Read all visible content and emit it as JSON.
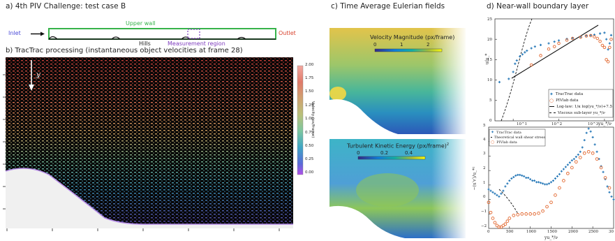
{
  "panel_a": {
    "title": "a) 4th PIV Challenge: test case B",
    "upper_wall": "Upper wall",
    "inlet": "Inlet",
    "outlet": "Outlet",
    "hills": "Hills",
    "measurement_region": "Measurement region"
  },
  "panel_b": {
    "title": "b) TracTrac processing (instantaneous object velocities at frame 28)",
    "y_marker": "y",
    "colorbar_label": "Velocity (px/frame)",
    "colorbar_ticks": [
      "2.00",
      "1.75",
      "1.50",
      "1.25",
      "1.00",
      "0.75",
      "0.50",
      "0.25",
      "0.00"
    ]
  },
  "panel_c": {
    "title": "c) Time Average Eulerian fields",
    "top_label": "Velocity Magnitude (px/frame)",
    "top_ticks": [
      "0",
      "1",
      "2"
    ],
    "bottom_label": "Turbulent Kinetic Energy (px/frame)",
    "bottom_label_sup": "2",
    "bottom_ticks": [
      "0",
      "0.2",
      "0.4"
    ]
  },
  "panel_d": {
    "title": "d) Near-wall boundary layer",
    "chart_data": [
      {
        "type": "scatter",
        "xscale": "log",
        "xlabel": "yu_*/ν",
        "ylabel": "u/u_*",
        "ylim": [
          0,
          25
        ],
        "yticks": [
          "0",
          "5",
          "10",
          "15",
          "20",
          "25"
        ],
        "xticks": [
          "10^1",
          "10^2",
          "10^3"
        ],
        "legend": [
          "TracTrac data",
          "PIVlab data",
          "Log-law: 1/κ log(yu_*/ν)+7.5",
          "Viscous sub-layer yu_*/ν"
        ],
        "series": [
          {
            "name": "TracTrac data",
            "color": "#2b7bb9",
            "x": [
              5,
              8,
              10,
              11,
              12,
              14,
              16,
              18,
              20,
              25,
              30,
              40,
              60,
              80,
              100,
              150,
              200,
              300,
              400,
              500,
              600,
              800,
              1000,
              1100,
              1200,
              1300,
              1400
            ],
            "y": [
              9.5,
              10.3,
              12,
              14,
              14.8,
              15.8,
              16.3,
              16.8,
              17.2,
              17.8,
              18.2,
              18.6,
              19,
              19.4,
              19.7,
              20.1,
              20.3,
              20.6,
              20.9,
              21,
              21.1,
              21.4,
              21.6,
              20,
              17.5,
              19,
              21
            ]
          },
          {
            "name": "PIVlab data",
            "color": "#e2662d",
            "x": [
              25,
              40,
              60,
              80,
              100,
              150,
              200,
              300,
              400,
              500,
              600,
              700,
              800,
              900,
              1000,
              1100,
              1200,
              1300,
              1400
            ],
            "y": [
              13.7,
              16,
              17.6,
              18.2,
              19,
              19.8,
              20.2,
              20.5,
              20.8,
              20.9,
              20.6,
              20.2,
              19.5,
              18.5,
              18,
              15,
              14.5,
              18,
              20
            ]
          }
        ]
      },
      {
        "type": "scatter",
        "xlabel": "yu_*/ν",
        "ylabel": "−⟨u′v′⟩/u_*²",
        "xlim": [
          0,
          3000
        ],
        "ylim": [
          -2,
          5
        ],
        "xticks": [
          "0",
          "500",
          "1000",
          "1500",
          "2000",
          "2500",
          "30"
        ],
        "yticks": [
          "−2",
          "−1",
          "0",
          "1",
          "2",
          "3",
          "4",
          "5"
        ],
        "legend": [
          "TracTrac data",
          "Theoretical wall shear stress",
          "PIVlab data"
        ],
        "series": [
          {
            "name": "TracTrac data",
            "color": "#2b7bb9",
            "x": [
              0,
              50,
              100,
              150,
              200,
              250,
              300,
              350,
              400,
              450,
              500,
              550,
              600,
              650,
              700,
              750,
              800,
              850,
              900,
              950,
              1000,
              1050,
              1100,
              1150,
              1200,
              1250,
              1300,
              1350,
              1400,
              1450,
              1500,
              1550,
              1600,
              1650,
              1700,
              1750,
              1800,
              1850,
              1900,
              1950,
              2000,
              2050,
              2100,
              2150,
              2200,
              2250,
              2300,
              2350,
              2400,
              2450,
              2500,
              2550,
              2600,
              2650,
              2700,
              2750,
              2800,
              2850,
              2900,
              2950,
              3000
            ],
            "y": [
              0.7,
              0.6,
              0.5,
              0.4,
              0.3,
              0.2,
              0.4,
              0.6,
              0.9,
              1.1,
              1.3,
              1.45,
              1.55,
              1.65,
              1.7,
              1.7,
              1.65,
              1.6,
              1.5,
              1.5,
              1.4,
              1.3,
              1.3,
              1.2,
              1.2,
              1.15,
              1.1,
              1.05,
              1.05,
              1.1,
              1.2,
              1.3,
              1.45,
              1.6,
              1.75,
              1.95,
              2.1,
              2.25,
              2.4,
              2.55,
              2.7,
              2.8,
              2.95,
              3.1,
              3.3,
              3.6,
              4.1,
              4.6,
              4.9,
              4.7,
              4.3,
              3.8,
              3.3,
              2.8,
              2.3,
              1.9,
              1.4,
              0.9,
              0.5,
              0.2,
              0.0
            ]
          },
          {
            "name": "PIVlab data",
            "color": "#e2662d",
            "x": [
              0,
              50,
              100,
              150,
              200,
              250,
              300,
              350,
              400,
              450,
              500,
              600,
              700,
              800,
              900,
              1000,
              1100,
              1200,
              1300,
              1400,
              1500,
              1600,
              1700,
              1800,
              1900,
              2000,
              2100,
              2200,
              2300,
              2400,
              2500,
              2600,
              2700,
              2800,
              2900
            ],
            "y": [
              -0.2,
              -0.9,
              -1.3,
              -1.6,
              -1.8,
              -1.9,
              -1.9,
              -1.8,
              -1.7,
              -1.5,
              -1.3,
              -1.1,
              -1.05,
              -1.0,
              -1.0,
              -1.0,
              -1.0,
              -0.95,
              -0.8,
              -0.5,
              -0.2,
              0.3,
              0.8,
              1.3,
              1.8,
              2.2,
              2.6,
              2.9,
              3.2,
              3.3,
              3.2,
              2.8,
              2.2,
              1.5,
              0.8
            ]
          }
        ]
      }
    ]
  },
  "colors": {
    "wall_green": "#36b34a",
    "inlet_blue": "#4a4ad8",
    "outlet_red": "#d8432e",
    "measurement_purple": "#7d3bbd",
    "tractrac_blue": "#2b7bb9",
    "pivlab_orange": "#e2662d"
  }
}
